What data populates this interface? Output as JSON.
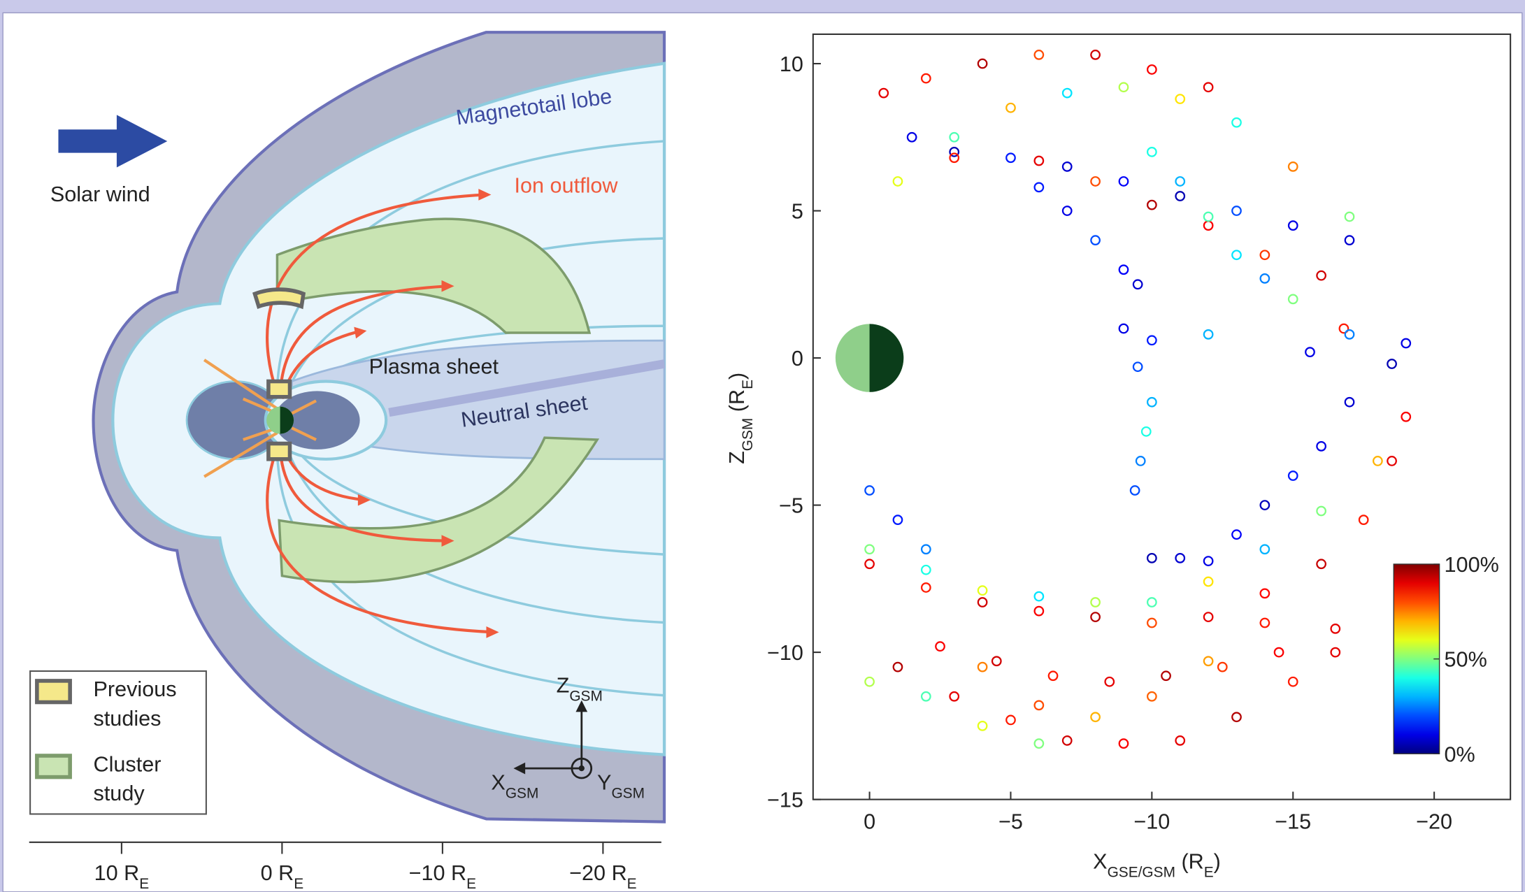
{
  "diagram": {
    "labels": {
      "magnetotail_lobe": "Magnetotail lobe",
      "ion_outflow": "Ion outflow",
      "solar_wind": "Solar wind",
      "plasma_sheet": "Plasma sheet",
      "neutral_sheet": "Neutral sheet"
    },
    "legend": [
      [
        "Previous",
        "studies"
      ],
      [
        "Cluster",
        "study"
      ]
    ],
    "axis_ticks": [
      [
        "10 R",
        "E"
      ],
      [
        "0 R",
        "E"
      ],
      [
        "−10 R",
        "E"
      ],
      [
        "−20 R",
        "E"
      ]
    ],
    "frame": {
      "z": [
        "Z",
        "GSM"
      ],
      "x": [
        "X",
        "GSM"
      ],
      "y": [
        "Y",
        "GSM"
      ]
    }
  },
  "chart_data": {
    "type": "scatter",
    "x": [
      -0.5,
      -2,
      -4,
      -6,
      -8,
      -10,
      -12,
      -1.5,
      -3,
      -5,
      -7,
      -9,
      -11,
      -13,
      -15,
      -17,
      -1,
      -3,
      -5,
      -7,
      -9,
      -11,
      -13,
      -15,
      -17,
      -3,
      -6,
      -8,
      -10,
      -12,
      -14,
      -16,
      -6,
      -7,
      -8,
      -9,
      -9.5,
      -10,
      -11,
      -12,
      -13,
      -14,
      -15,
      -9,
      -10,
      -9.5,
      -12,
      -16.8,
      -15.6,
      -17,
      0,
      -2,
      -4,
      -6,
      -8,
      -10,
      -12,
      -14,
      -16,
      -17.5,
      -18.5,
      -19,
      0,
      -2,
      -4,
      -6,
      -8,
      -10,
      -12,
      -14,
      -16,
      -18,
      -10,
      -11,
      -12,
      -13,
      -14,
      -15,
      -16,
      -17,
      -18.5,
      -19,
      -1,
      -3,
      -5,
      -7,
      -9,
      -11,
      -13,
      -15,
      -16.5,
      0,
      -2,
      -4,
      -6,
      -2.5,
      -4.5,
      -6.5,
      -8.5,
      -10.5,
      -12.5,
      -14.5,
      -16.5,
      0,
      -1,
      -2,
      -10,
      -9.8,
      -9.6,
      -9.4,
      -4,
      -6,
      -8,
      -10,
      -12,
      -14
    ],
    "values": [
      9,
      9.5,
      10,
      10.3,
      10.3,
      9.8,
      9.2,
      7.5,
      7,
      6.8,
      6.5,
      6,
      5.5,
      5,
      4.5,
      4,
      6,
      7.5,
      8.5,
      9,
      9.2,
      8.8,
      8,
      6.5,
      4.8,
      6.8,
      6.7,
      6,
      5.2,
      4.5,
      3.5,
      2.8,
      5.8,
      5,
      4,
      3,
      2.5,
      7,
      6,
      4.8,
      3.5,
      2.7,
      2,
      1,
      0.6,
      -0.3,
      0.8,
      1,
      0.2,
      0.8,
      -7,
      -7.8,
      -8.3,
      -8.6,
      -8.8,
      -9,
      -8.8,
      -8,
      -7,
      -5.5,
      -3.5,
      -2,
      -6.5,
      -7.2,
      -7.9,
      -8.1,
      -8.3,
      -8.3,
      -7.6,
      -6.5,
      -5.2,
      -3.5,
      -6.8,
      -6.8,
      -6.9,
      -6,
      -5,
      -4,
      -3,
      -1.5,
      -0.2,
      0.5,
      -10.5,
      -11.5,
      -12.3,
      -13,
      -13.1,
      -13,
      -12.2,
      -11,
      -10,
      -11,
      -11.5,
      -12.5,
      -13.1,
      -9.8,
      -10.3,
      -10.8,
      -11,
      -10.8,
      -10.5,
      -10,
      -9.2,
      -4.5,
      -5.5,
      -6.5,
      -1.5,
      -2.5,
      -3.5,
      -4.5,
      -10.5,
      -11.8,
      -12.2,
      -11.5,
      -10.3,
      -9
    ],
    "color_values": [
      90,
      85,
      95,
      80,
      92,
      88,
      90,
      10,
      5,
      15,
      8,
      12,
      5,
      20,
      10,
      8,
      60,
      45,
      70,
      35,
      55,
      65,
      40,
      75,
      50,
      85,
      90,
      80,
      95,
      88,
      82,
      92,
      15,
      10,
      20,
      12,
      8,
      40,
      30,
      45,
      35,
      25,
      50,
      10,
      15,
      20,
      30,
      85,
      10,
      25,
      90,
      85,
      92,
      88,
      95,
      80,
      90,
      87,
      93,
      85,
      90,
      88,
      50,
      40,
      60,
      35,
      55,
      45,
      65,
      30,
      50,
      70,
      5,
      8,
      10,
      12,
      6,
      15,
      10,
      8,
      5,
      10,
      95,
      90,
      85,
      92,
      88,
      90,
      95,
      85,
      90,
      55,
      45,
      60,
      50,
      88,
      92,
      85,
      90,
      95,
      82,
      88,
      90,
      20,
      15,
      25,
      30,
      40,
      25,
      20,
      75,
      80,
      70,
      78,
      72,
      85
    ],
    "colormap": "jet",
    "xlim": [
      2,
      -22.7
    ],
    "ylim": [
      -15,
      11
    ],
    "xticks": [
      0,
      {
        "value": -5,
        "label": "−5"
      },
      {
        "value": -10,
        "label": "−10"
      },
      {
        "value": -15,
        "label": "−15"
      },
      {
        "value": -20,
        "label": "−20"
      }
    ],
    "yticks": [
      10,
      5,
      0,
      {
        "value": -5,
        "label": "−5"
      },
      {
        "value": -10,
        "label": "−10"
      },
      {
        "value": -15,
        "label": "−15"
      }
    ],
    "xlabel": [
      "X",
      "GSE/GSM",
      " (R",
      "E",
      ")"
    ],
    "ylabel": [
      "Z",
      "GSM",
      " (R",
      "E",
      ")"
    ],
    "colorbar": {
      "clim": [
        0,
        100
      ],
      "ticks": [
        {
          "value": 0,
          "label": "0%"
        },
        {
          "value": 50,
          "label": "50%"
        },
        {
          "value": 100,
          "label": "100%"
        }
      ]
    }
  }
}
